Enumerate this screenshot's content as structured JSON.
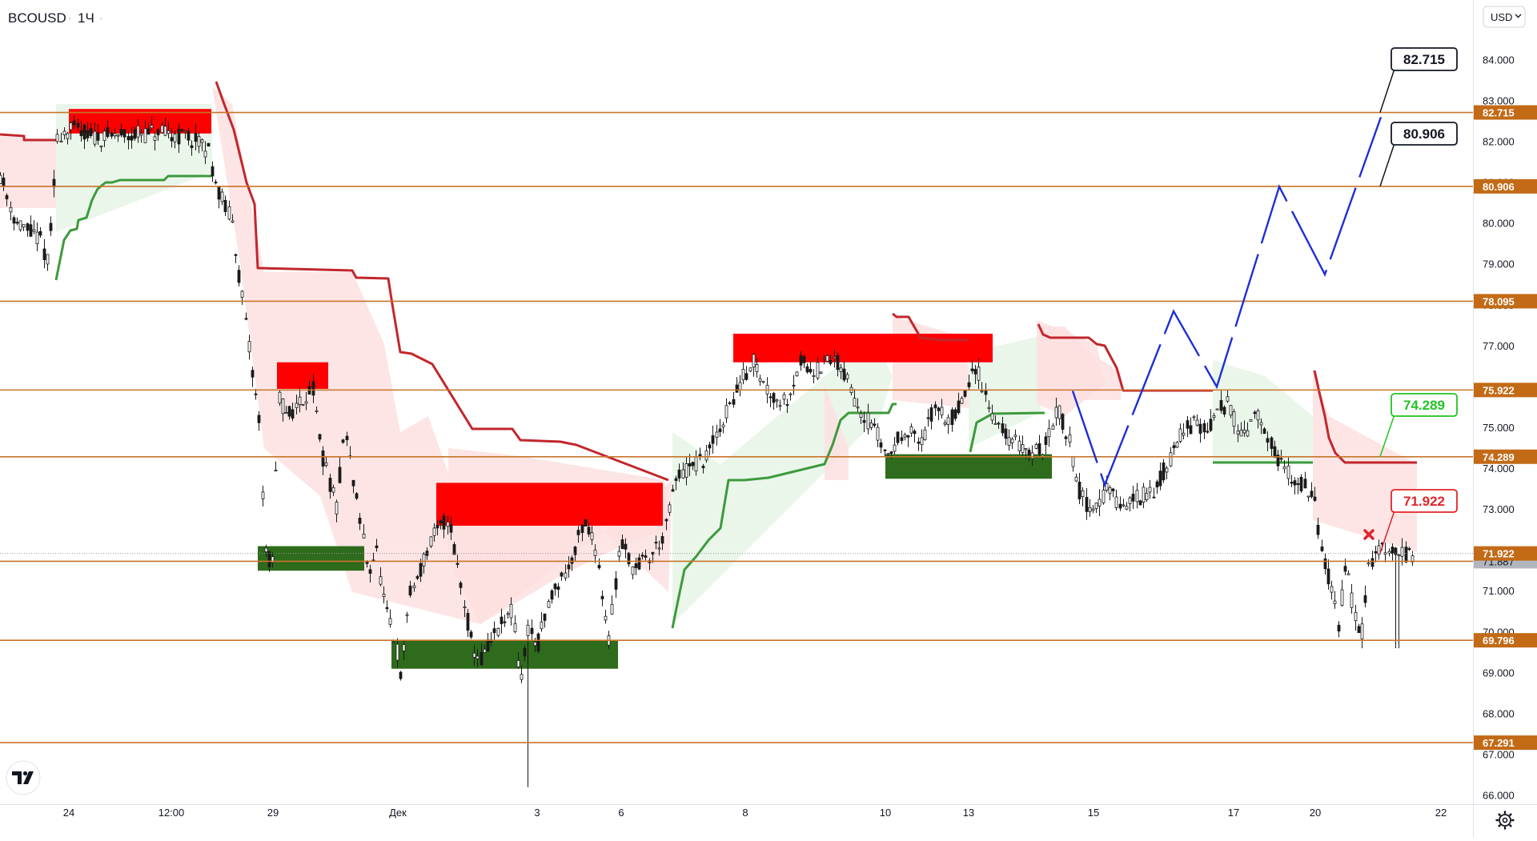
{
  "header": {
    "symbol": "BCOUSD",
    "interval": "1Ч",
    "currency": "USD"
  },
  "colors": {
    "level_line": "#c8742a",
    "level_label_bg": "#c36a16",
    "resistance_zone": "#ff0000",
    "support_zone": "#2e6b1c",
    "trail_red": "#c1272d",
    "trail_green": "#3c9a3c",
    "projection": "#1f2fd6",
    "candle": "#1a1a1a",
    "fill_red": "#fde0e0",
    "fill_green": "#e6f4e6",
    "last_price_bg": "#b2b5be"
  },
  "icons": {
    "logo": "tradingview-logo-icon",
    "settings": "gear-icon",
    "dropdown": "chevron-down-icon"
  },
  "chart_data": {
    "type": "candlestick",
    "symbol": "BCOUSD",
    "timeframe": "1Ч",
    "ylim": [
      65.5,
      84.3
    ],
    "y_ticks": [
      "84.000",
      "83.000",
      "82.000",
      "81.000",
      "80.000",
      "79.000",
      "78.000",
      "77.000",
      "76.000",
      "75.000",
      "74.000",
      "73.000",
      "72.000",
      "71.000",
      "70.000",
      "69.000",
      "68.000",
      "67.000",
      "66.000"
    ],
    "x_ticks": [
      "24",
      "12:00",
      "29",
      "Дек",
      "3",
      "6",
      "8",
      "10",
      "13",
      "15",
      "17",
      "20",
      "22"
    ],
    "levels": [
      {
        "value": 82.715,
        "label": "82.715"
      },
      {
        "value": 80.906,
        "label": "80.906"
      },
      {
        "value": 78.095,
        "label": "78.095"
      },
      {
        "value": 75.922,
        "label": "75.922"
      },
      {
        "value": 74.289,
        "label": "74.289"
      },
      {
        "value": 71.887,
        "label": "71.887",
        "last_price": true
      },
      {
        "value": 69.796,
        "label": "69.796"
      },
      {
        "value": 67.291,
        "label": "67.291"
      }
    ],
    "resistance_zones": [
      {
        "x_from": "24",
        "x_to": "24 18:00",
        "y_from": 82.2,
        "y_to": 82.8
      },
      {
        "x_from": "29 03:00",
        "x_to": "29 10:00",
        "y_from": 75.95,
        "y_to": 76.6
      },
      {
        "x_from": "2 Дек",
        "x_to": "6 Дек",
        "y_from": 72.6,
        "y_to": 73.65
      },
      {
        "x_from": "8 Дек",
        "x_to": "13 Дек",
        "y_from": 76.6,
        "y_to": 77.3
      }
    ],
    "support_zones": [
      {
        "x_from": "28",
        "x_to": "29 12:00",
        "y_from": 71.5,
        "y_to": 72.1
      },
      {
        "x_from": "1 Дек",
        "x_to": "3 Дек",
        "y_from": 69.1,
        "y_to": 69.8
      },
      {
        "x_from": "10 Дек",
        "x_to": "13 Дек",
        "y_from": 73.75,
        "y_to": 74.35
      }
    ],
    "callouts": [
      {
        "text": "82.715",
        "style": "black"
      },
      {
        "text": "80.906",
        "style": "black"
      },
      {
        "text": "74.289",
        "style": "green"
      },
      {
        "text": "71.922",
        "style": "red"
      }
    ],
    "projection_path": [
      {
        "x": "14 Дек",
        "y": 75.9
      },
      {
        "x": "15 Дек",
        "y": 73.6
      },
      {
        "x": "16 Дек",
        "y": 77.85
      },
      {
        "x": "16 Дек 20:00",
        "y": 76.0
      },
      {
        "x": "18 Дек",
        "y": 80.9
      },
      {
        "x": "19 Дек",
        "y": 78.75
      },
      {
        "x": "20 Дек",
        "y": 82.6
      }
    ],
    "axis_labels": [
      "82.715",
      "80.906",
      "78.095",
      "75.922",
      "74.289",
      "71.922",
      "71.887",
      "69.796",
      "67.291"
    ]
  }
}
